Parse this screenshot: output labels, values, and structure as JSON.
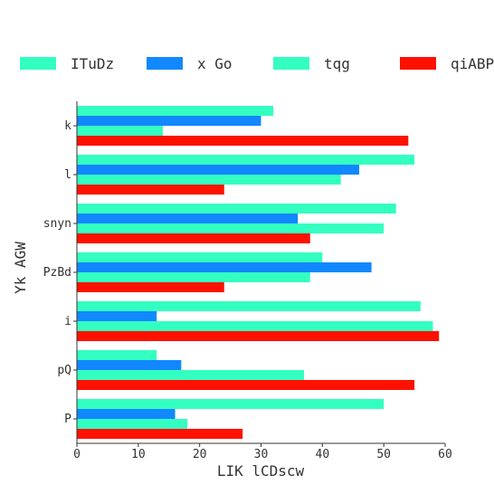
{
  "chart_data": {
    "type": "bar",
    "orientation": "horizontal",
    "title": "",
    "xlabel": "LIK lCDscw",
    "ylabel": "Yk AGW",
    "xlim": [
      0,
      60
    ],
    "xticks": [
      "0",
      "10",
      "20",
      "30",
      "40",
      "50",
      "60"
    ],
    "grid": false,
    "legend_position": "top",
    "categories": [
      "k",
      "l",
      "snyn",
      "PzBd",
      "i",
      "pQ",
      "P"
    ],
    "series": [
      {
        "name": "ITuDz",
        "color": "#33ffc0",
        "values": [
          32,
          55,
          52,
          40,
          56,
          13,
          50
        ]
      },
      {
        "name": "x Go",
        "color": "#1188ff",
        "values": [
          30,
          46,
          36,
          48,
          13,
          17,
          16
        ]
      },
      {
        "name": "tqg",
        "color": "#33ffc0",
        "values": [
          14,
          43,
          50,
          38,
          58,
          37,
          18
        ]
      },
      {
        "name": "qiABP",
        "color": "#ff1100",
        "values": [
          54,
          24,
          38,
          24,
          59,
          55,
          27
        ]
      }
    ]
  }
}
